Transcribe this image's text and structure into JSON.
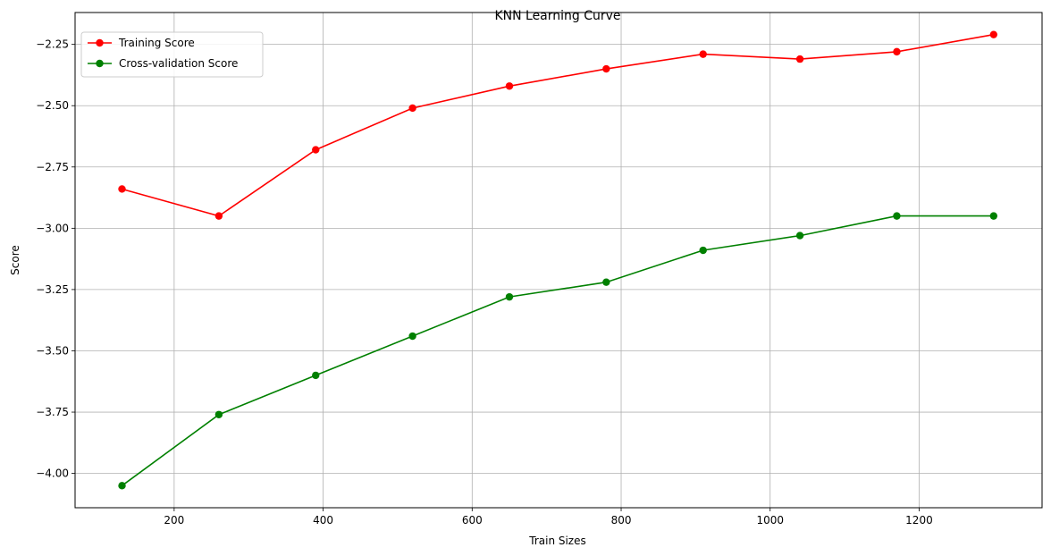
{
  "chart_data": {
    "type": "line",
    "title": "KNN Learning Curve",
    "xlabel": "Train Sizes",
    "ylabel": "Score",
    "xlim": [
      67,
      1365
    ],
    "ylim": [
      -4.14,
      -2.12
    ],
    "x_ticks": [
      200,
      400,
      600,
      800,
      1000,
      1200
    ],
    "y_ticks": [
      -2.25,
      -2.5,
      -2.75,
      -3.0,
      -3.25,
      -3.5,
      -3.75,
      -4.0
    ],
    "grid": true,
    "legend_position": "top-left",
    "x": [
      130,
      260,
      390,
      520,
      650,
      780,
      910,
      1040,
      1170,
      1300
    ],
    "series": [
      {
        "name": "Training Score",
        "color": "#ff0000",
        "marker": "circle",
        "values": [
          -2.84,
          -2.95,
          -2.68,
          -2.51,
          -2.42,
          -2.35,
          -2.29,
          -2.31,
          -2.28,
          -2.21
        ]
      },
      {
        "name": "Cross-validation Score",
        "color": "#008000",
        "marker": "circle",
        "values": [
          -4.05,
          -3.76,
          -3.6,
          -3.44,
          -3.28,
          -3.22,
          -3.09,
          -3.03,
          -2.95,
          -2.95
        ]
      }
    ]
  }
}
